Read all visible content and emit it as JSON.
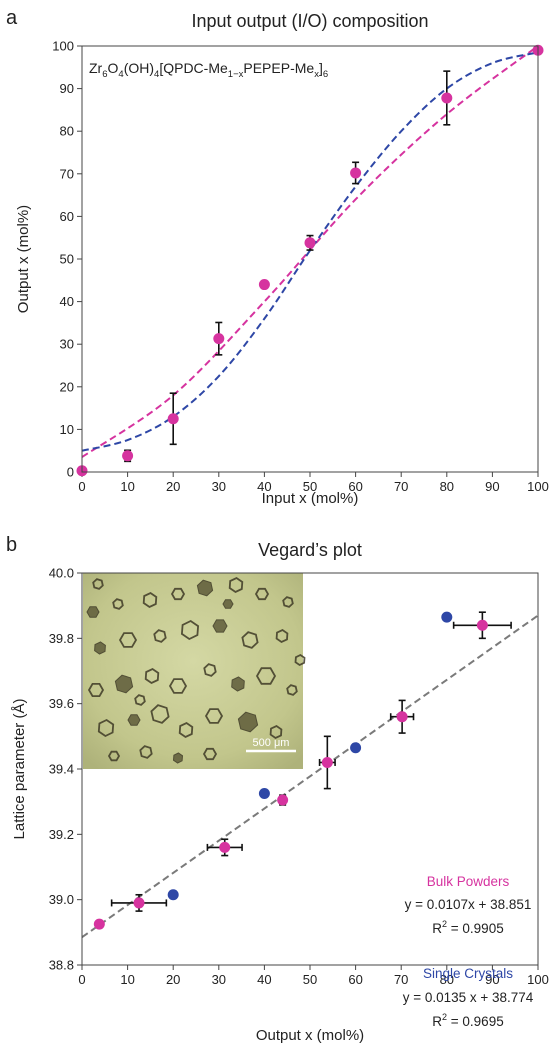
{
  "chart_data": [
    {
      "panel": "a",
      "type": "scatter",
      "title": "Input output (I/O) composition",
      "formula": {
        "parts": [
          {
            "t": "Zr",
            "s": "n"
          },
          {
            "t": "6",
            "s": "sub"
          },
          {
            "t": "O",
            "s": "n"
          },
          {
            "t": "4",
            "s": "sub"
          },
          {
            "t": "(OH)",
            "s": "n"
          },
          {
            "t": "4",
            "s": "sub"
          },
          {
            "t": "[QPDC-Me",
            "s": "n"
          },
          {
            "t": "1−x",
            "s": "sub"
          },
          {
            "t": "PEPEP-Me",
            "s": "n"
          },
          {
            "t": "x",
            "s": "sub"
          },
          {
            "t": "]",
            "s": "n"
          },
          {
            "t": "6",
            "s": "sub"
          }
        ]
      },
      "xlabel": "Input x (mol%)",
      "ylabel": "Output x (mol%)",
      "xlim": [
        0,
        100
      ],
      "ylim": [
        0,
        100
      ],
      "xticks": [
        "0",
        "10",
        "20",
        "30",
        "40",
        "50",
        "60",
        "70",
        "80",
        "90",
        "100"
      ],
      "yticks": [
        "0",
        "10",
        "20",
        "30",
        "40",
        "50",
        "60",
        "70",
        "80",
        "90",
        "100"
      ],
      "grid": false,
      "series": [
        {
          "color": "#d6339f",
          "points": [
            {
              "x": 0,
              "y": 0.3,
              "yerr": 0
            },
            {
              "x": 10,
              "y": 3.8,
              "yerr": 1.3
            },
            {
              "x": 20,
              "y": 12.5,
              "yerr": 6
            },
            {
              "x": 30,
              "y": 31.3,
              "yerr": 3.8
            },
            {
              "x": 40,
              "y": 44,
              "yerr": 0
            },
            {
              "x": 50,
              "y": 53.8,
              "yerr": 1.7
            },
            {
              "x": 60,
              "y": 70.2,
              "yerr": 2.5
            },
            {
              "x": 80,
              "y": 87.8,
              "yerr": 6.3
            },
            {
              "x": 100,
              "y": 99,
              "yerr": 0
            }
          ]
        }
      ],
      "fits": [
        {
          "style": "dashed",
          "color": "#d6339f",
          "points": [
            [
              0,
              3.5
            ],
            [
              20,
              18
            ],
            [
              40,
              40
            ],
            [
              60,
              64
            ],
            [
              80,
              84
            ],
            [
              100,
              100
            ]
          ]
        },
        {
          "style": "dashed",
          "color": "#2e47a6",
          "points": [
            [
              0,
              5
            ],
            [
              10,
              7.5
            ],
            [
              20,
              13
            ],
            [
              30,
              22.5
            ],
            [
              40,
              36
            ],
            [
              50,
              52
            ],
            [
              60,
              67
            ],
            [
              70,
              80
            ],
            [
              80,
              90
            ],
            [
              90,
              96
            ],
            [
              100,
              98.5
            ]
          ]
        }
      ]
    },
    {
      "panel": "b",
      "type": "scatter",
      "title": "Vegard’s plot",
      "xlabel": "Output x (mol%)",
      "ylabel": "Lattice parameter (Å)",
      "xlim": [
        0,
        100
      ],
      "ylim": [
        38.8,
        40.0
      ],
      "xticks": [
        "0",
        "10",
        "20",
        "30",
        "40",
        "50",
        "60",
        "70",
        "80",
        "90",
        "100"
      ],
      "yticks": [
        "38.8",
        "39.0",
        "39.2",
        "39.4",
        "39.6",
        "39.8",
        "40.0"
      ],
      "grid": false,
      "inset": {
        "scale_bar_label": "500 μm"
      },
      "series": [
        {
          "name": "Bulk Powders",
          "color": "#d6339f",
          "points": [
            {
              "x": 3.8,
              "y": 38.925,
              "xerr": 0,
              "yerr": 0.01
            },
            {
              "x": 12.5,
              "y": 38.99,
              "xerr": 6,
              "yerr": 0.025
            },
            {
              "x": 31.3,
              "y": 39.16,
              "xerr": 3.8,
              "yerr": 0.025
            },
            {
              "x": 44,
              "y": 39.305,
              "xerr": 0,
              "yerr": 0.015
            },
            {
              "x": 53.8,
              "y": 39.42,
              "xerr": 1.7,
              "yerr": 0.08
            },
            {
              "x": 70.2,
              "y": 39.56,
              "xerr": 2.5,
              "yerr": 0.05
            },
            {
              "x": 87.8,
              "y": 39.84,
              "xerr": 6.3,
              "yerr": 0.04
            }
          ]
        },
        {
          "name": "Single Crystals",
          "color": "#2e47a6",
          "points": [
            {
              "x": 20,
              "y": 39.015
            },
            {
              "x": 40,
              "y": 39.325
            },
            {
              "x": 60,
              "y": 39.465
            },
            {
              "x": 80,
              "y": 39.865
            }
          ]
        }
      ],
      "fits": [
        {
          "style": "dashed",
          "color": "#7a7a7a",
          "slope": 0.00985,
          "intercept": 38.885
        }
      ],
      "annotations": [
        {
          "label": "Bulk Powders",
          "color": "#d6339f",
          "equation": "y = 0.0107x + 38.851",
          "r2_prefix": "R",
          "r2_sup": "2",
          "r2_value": " = 0.9905"
        },
        {
          "label": "Single Crystals",
          "color": "#2e47a6",
          "equation": "y = 0.0135 x + 38.774",
          "r2_prefix": "R",
          "r2_sup": "2",
          "r2_value": " = 0.9695"
        }
      ]
    }
  ]
}
